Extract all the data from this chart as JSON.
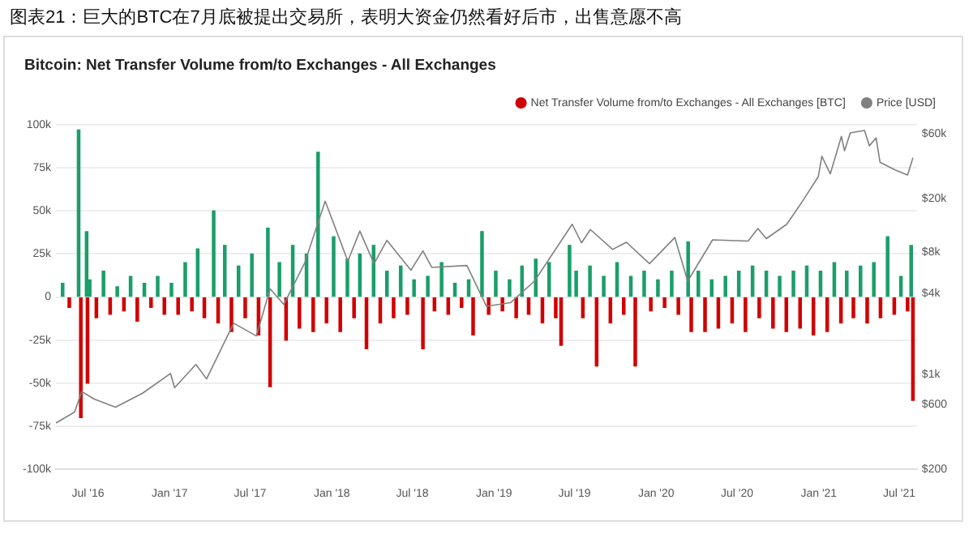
{
  "chart_data": {
    "type": "bar",
    "title": "图表21：巨大的BTC在7月底被提出交易所，表明大资金仍然看好后市，出售意愿不高",
    "subtitle": "Bitcoin: Net Transfer Volume from/to Exchanges - All Exchanges",
    "series": [
      {
        "name": "Net Transfer Volume from/to Exchanges - All Exchanges [BTC]",
        "color": "#d10000",
        "x": [
          "2016-05-05",
          "2016-05-20",
          "2016-06-10",
          "2016-06-15",
          "2016-06-28",
          "2016-06-30",
          "2016-07-05",
          "2016-07-20",
          "2016-08-05",
          "2016-08-20",
          "2016-09-05",
          "2016-09-20",
          "2016-10-05",
          "2016-10-20",
          "2016-11-05",
          "2016-11-20",
          "2016-12-05",
          "2016-12-20",
          "2017-01-05",
          "2017-01-20",
          "2017-02-05",
          "2017-02-20",
          "2017-03-05",
          "2017-03-20",
          "2017-04-10",
          "2017-04-20",
          "2017-05-05",
          "2017-05-20",
          "2017-06-05",
          "2017-06-20",
          "2017-07-05",
          "2017-07-20",
          "2017-08-10",
          "2017-08-15",
          "2017-09-05",
          "2017-09-20",
          "2017-10-05",
          "2017-10-20",
          "2017-11-05",
          "2017-11-20",
          "2017-12-01",
          "2017-12-20",
          "2018-01-05",
          "2018-01-20",
          "2018-02-05",
          "2018-02-20",
          "2018-03-05",
          "2018-03-20",
          "2018-04-05",
          "2018-04-20",
          "2018-05-05",
          "2018-05-20",
          "2018-06-05",
          "2018-06-20",
          "2018-07-05",
          "2018-07-25",
          "2018-08-05",
          "2018-08-20",
          "2018-09-05",
          "2018-09-20",
          "2018-10-05",
          "2018-10-20",
          "2018-11-05",
          "2018-11-15",
          "2018-12-05",
          "2018-12-20",
          "2019-01-05",
          "2019-01-20",
          "2019-02-05",
          "2019-02-20",
          "2019-03-05",
          "2019-03-20",
          "2019-04-05",
          "2019-04-20",
          "2019-05-05",
          "2019-05-20",
          "2019-06-01",
          "2019-06-20",
          "2019-07-05",
          "2019-07-20",
          "2019-08-05",
          "2019-08-20",
          "2019-09-05",
          "2019-09-20",
          "2019-10-05",
          "2019-10-20",
          "2019-11-05",
          "2019-11-15",
          "2019-12-05",
          "2019-12-20",
          "2020-01-05",
          "2020-01-20",
          "2020-02-05",
          "2020-02-20",
          "2020-03-13",
          "2020-03-20",
          "2020-04-05",
          "2020-04-20",
          "2020-05-05",
          "2020-05-20",
          "2020-06-05",
          "2020-06-20",
          "2020-07-05",
          "2020-07-20",
          "2020-08-05",
          "2020-08-20",
          "2020-09-05",
          "2020-09-20",
          "2020-10-05",
          "2020-10-20",
          "2020-11-05",
          "2020-11-20",
          "2020-12-05",
          "2020-12-20",
          "2021-01-05",
          "2021-01-20",
          "2021-02-05",
          "2021-02-20",
          "2021-03-05",
          "2021-03-20",
          "2021-04-05",
          "2021-04-20",
          "2021-05-05",
          "2021-05-20",
          "2021-06-05",
          "2021-06-20",
          "2021-07-05",
          "2021-07-20",
          "2021-07-28",
          "2021-08-01"
        ],
        "values": [
          8000,
          -6000,
          97000,
          -70000,
          38000,
          -50000,
          10000,
          -12000,
          15000,
          -10000,
          6000,
          -8000,
          12000,
          -14000,
          8000,
          -6000,
          12000,
          -10000,
          8000,
          -10000,
          20000,
          -8000,
          28000,
          -12000,
          50000,
          -15000,
          30000,
          -20000,
          18000,
          -12000,
          25000,
          -22000,
          40000,
          -52000,
          20000,
          -25000,
          30000,
          -18000,
          25000,
          -20000,
          84000,
          -15000,
          35000,
          -20000,
          22000,
          -12000,
          25000,
          -30000,
          30000,
          -15000,
          15000,
          -12000,
          18000,
          -10000,
          10000,
          -30000,
          12000,
          -8000,
          20000,
          -10000,
          8000,
          -6000,
          10000,
          -22000,
          38000,
          -10000,
          15000,
          -8000,
          10000,
          -12000,
          18000,
          -10000,
          22000,
          -15000,
          20000,
          -12000,
          -28000,
          30000,
          15000,
          -12000,
          18000,
          -40000,
          12000,
          -15000,
          20000,
          -10000,
          12000,
          -40000,
          15000,
          -8000,
          10000,
          -6000,
          15000,
          -10000,
          32000,
          -20000,
          15000,
          -20000,
          10000,
          -18000,
          12000,
          -15000,
          15000,
          -20000,
          18000,
          -12000,
          15000,
          -18000,
          12000,
          -20000,
          15000,
          -18000,
          18000,
          -22000,
          15000,
          -20000,
          20000,
          -15000,
          15000,
          -12000,
          18000,
          -15000,
          20000,
          -12000,
          35000,
          -10000,
          12000,
          -8000,
          30000,
          -60000
        ],
        "colors": [
          "#1a9e6a",
          "#d10000",
          "#1a9e6a",
          "#d10000",
          "#1a9e6a",
          "#d10000",
          "#1a9e6a",
          "#d10000",
          "#1a9e6a",
          "#d10000",
          "#1a9e6a",
          "#d10000",
          "#1a9e6a",
          "#d10000",
          "#1a9e6a",
          "#d10000",
          "#1a9e6a",
          "#d10000",
          "#1a9e6a",
          "#d10000",
          "#1a9e6a",
          "#d10000",
          "#1a9e6a",
          "#d10000",
          "#1a9e6a",
          "#d10000",
          "#1a9e6a",
          "#d10000",
          "#1a9e6a",
          "#d10000",
          "#1a9e6a",
          "#d10000",
          "#1a9e6a",
          "#d10000",
          "#1a9e6a",
          "#d10000",
          "#1a9e6a",
          "#d10000",
          "#1a9e6a",
          "#d10000",
          "#1a9e6a",
          "#d10000",
          "#1a9e6a",
          "#d10000",
          "#1a9e6a",
          "#d10000",
          "#1a9e6a",
          "#d10000",
          "#1a9e6a",
          "#d10000",
          "#1a9e6a",
          "#d10000",
          "#1a9e6a",
          "#d10000",
          "#1a9e6a",
          "#d10000",
          "#1a9e6a",
          "#d10000",
          "#1a9e6a",
          "#d10000",
          "#1a9e6a",
          "#d10000",
          "#1a9e6a",
          "#d10000",
          "#1a9e6a",
          "#d10000",
          "#1a9e6a",
          "#d10000",
          "#1a9e6a",
          "#d10000",
          "#1a9e6a",
          "#d10000",
          "#1a9e6a",
          "#d10000",
          "#1a9e6a",
          "#d10000",
          "#d10000",
          "#1a9e6a",
          "#1a9e6a",
          "#d10000",
          "#1a9e6a",
          "#d10000",
          "#1a9e6a",
          "#d10000",
          "#1a9e6a",
          "#d10000",
          "#1a9e6a",
          "#d10000",
          "#1a9e6a",
          "#d10000",
          "#1a9e6a",
          "#d10000",
          "#1a9e6a",
          "#d10000",
          "#1a9e6a",
          "#d10000",
          "#1a9e6a",
          "#d10000",
          "#1a9e6a",
          "#d10000",
          "#1a9e6a",
          "#d10000",
          "#1a9e6a",
          "#d10000",
          "#1a9e6a",
          "#d10000",
          "#1a9e6a",
          "#d10000",
          "#1a9e6a",
          "#d10000",
          "#1a9e6a",
          "#d10000",
          "#1a9e6a",
          "#d10000",
          "#1a9e6a",
          "#d10000",
          "#1a9e6a",
          "#d10000",
          "#1a9e6a",
          "#d10000",
          "#1a9e6a",
          "#d10000",
          "#1a9e6a",
          "#d10000",
          "#1a9e6a",
          "#d10000",
          "#1a9e6a",
          "#d10000",
          "#1a9e6a",
          "#d10000"
        ]
      },
      {
        "name": "Price [USD]",
        "type": "line",
        "axis": "y2",
        "color": "#808080",
        "x": [
          "2016-04-20",
          "2016-06-01",
          "2016-06-17",
          "2016-07-15",
          "2016-09-01",
          "2016-11-01",
          "2017-01-03",
          "2017-01-12",
          "2017-03-01",
          "2017-03-25",
          "2017-05-25",
          "2017-07-15",
          "2017-08-15",
          "2017-09-15",
          "2017-11-01",
          "2017-12-17",
          "2018-02-06",
          "2018-03-05",
          "2018-04-06",
          "2018-05-05",
          "2018-06-28",
          "2018-07-25",
          "2018-08-14",
          "2018-11-01",
          "2018-12-15",
          "2019-02-07",
          "2019-04-02",
          "2019-06-26",
          "2019-07-17",
          "2019-08-06",
          "2019-09-25",
          "2019-10-26",
          "2019-12-17",
          "2020-02-12",
          "2020-03-12",
          "2020-05-07",
          "2020-07-26",
          "2020-08-17",
          "2020-09-05",
          "2020-10-21",
          "2020-11-25",
          "2020-12-31",
          "2021-01-08",
          "2021-01-27",
          "2021-02-21",
          "2021-02-28",
          "2021-03-13",
          "2021-04-14",
          "2021-04-25",
          "2021-05-10",
          "2021-05-19",
          "2021-06-22",
          "2021-07-20",
          "2021-08-01"
        ],
        "values": [
          440,
          530,
          750,
          660,
          575,
          730,
          1020,
          800,
          1190,
          930,
          2400,
          1930,
          4300,
          3300,
          6700,
          19100,
          6900,
          11500,
          6600,
          9800,
          5900,
          8200,
          6200,
          6400,
          3200,
          3400,
          4900,
          12900,
          9400,
          11800,
          8400,
          9500,
          6600,
          10300,
          4900,
          9900,
          9700,
          12000,
          10100,
          12900,
          19000,
          29000,
          41000,
          30400,
          57500,
          45000,
          61000,
          63500,
          49000,
          56000,
          37000,
          32500,
          29800,
          40000
        ]
      }
    ],
    "xlim": [
      "2016-04-20",
      "2021-08-10"
    ],
    "xticks": [
      {
        "value": "2016-07-01",
        "label": "Jul '16"
      },
      {
        "value": "2017-01-01",
        "label": "Jan '17"
      },
      {
        "value": "2017-07-01",
        "label": "Jul '17"
      },
      {
        "value": "2018-01-01",
        "label": "Jan '18"
      },
      {
        "value": "2018-07-01",
        "label": "Jul '18"
      },
      {
        "value": "2019-01-01",
        "label": "Jan '19"
      },
      {
        "value": "2019-07-01",
        "label": "Jul '19"
      },
      {
        "value": "2020-01-01",
        "label": "Jan '20"
      },
      {
        "value": "2020-07-01",
        "label": "Jul '20"
      },
      {
        "value": "2021-01-01",
        "label": "Jan '21"
      },
      {
        "value": "2021-07-01",
        "label": "Jul '21"
      }
    ],
    "ylim": [
      -100000,
      100000
    ],
    "yticks": [
      {
        "value": -100000,
        "label": "-100k"
      },
      {
        "value": -75000,
        "label": "-75k"
      },
      {
        "value": -50000,
        "label": "-50k"
      },
      {
        "value": -25000,
        "label": "-25k"
      },
      0,
      {
        "value": 25000,
        "label": "25k"
      },
      {
        "value": 50000,
        "label": "50k"
      },
      {
        "value": 75000,
        "label": "75k"
      },
      {
        "value": 100000,
        "label": "100k"
      }
    ],
    "log": "y2",
    "y2lim": [
      200,
      70000
    ],
    "y2ticks": [
      {
        "value": 200,
        "label": "$200"
      },
      {
        "value": 600,
        "label": "$600"
      },
      {
        "value": 1000,
        "label": "$1k"
      },
      {
        "value": 4000,
        "label": "$4k"
      },
      {
        "value": 8000,
        "label": "$8k"
      },
      {
        "value": 20000,
        "label": "$20k"
      },
      {
        "value": 60000,
        "label": "$60k"
      }
    ],
    "grid": "y",
    "legend": "top right",
    "marker": "none",
    "line_style": "solid"
  }
}
